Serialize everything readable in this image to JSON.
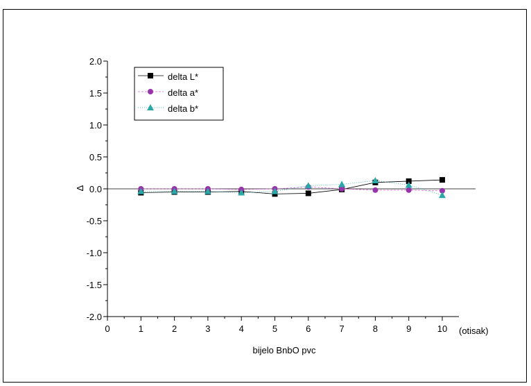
{
  "chart_data": {
    "type": "line",
    "title": "",
    "xlabel": "bijelo BnbO pvc",
    "xunit": "(otisak)",
    "ylabel": "Δ",
    "xlim": [
      0,
      10
    ],
    "ylim": [
      -2.0,
      2.0
    ],
    "x_ticks": [
      "0",
      "1",
      "2",
      "3",
      "4",
      "5",
      "6",
      "7",
      "8",
      "9",
      "10"
    ],
    "y_ticks": [
      "-2.0",
      "-1.5",
      "-1.0",
      "-0.5",
      "0.0",
      "0.5",
      "1.0",
      "1.5",
      "2.0"
    ],
    "y_tick_values": [
      -2.0,
      -1.5,
      -1.0,
      -0.5,
      0.0,
      0.5,
      1.0,
      1.5,
      2.0
    ],
    "x": [
      1,
      2,
      3,
      4,
      5,
      6,
      7,
      8,
      9,
      10
    ],
    "legend_position": "top-left",
    "grid": false,
    "zero_line": true,
    "series": [
      {
        "name": "delta L*",
        "marker": "square",
        "color": "#000000",
        "line": "solid",
        "values": [
          -0.06,
          -0.05,
          -0.05,
          -0.04,
          -0.08,
          -0.07,
          -0.01,
          0.1,
          0.12,
          0.14
        ]
      },
      {
        "name": "delta a*",
        "marker": "circle",
        "color": "#9933AA",
        "line": "dashed",
        "line_color": "#E060E0",
        "values": [
          0.0,
          0.0,
          0.0,
          -0.01,
          0.0,
          0.03,
          0.0,
          -0.02,
          -0.02,
          -0.03
        ]
      },
      {
        "name": "delta b*",
        "marker": "triangle",
        "color": "#2AA8A8",
        "line": "dotted",
        "values": [
          -0.04,
          -0.04,
          -0.04,
          -0.06,
          -0.04,
          0.05,
          0.07,
          0.13,
          0.06,
          -0.1
        ]
      }
    ]
  }
}
